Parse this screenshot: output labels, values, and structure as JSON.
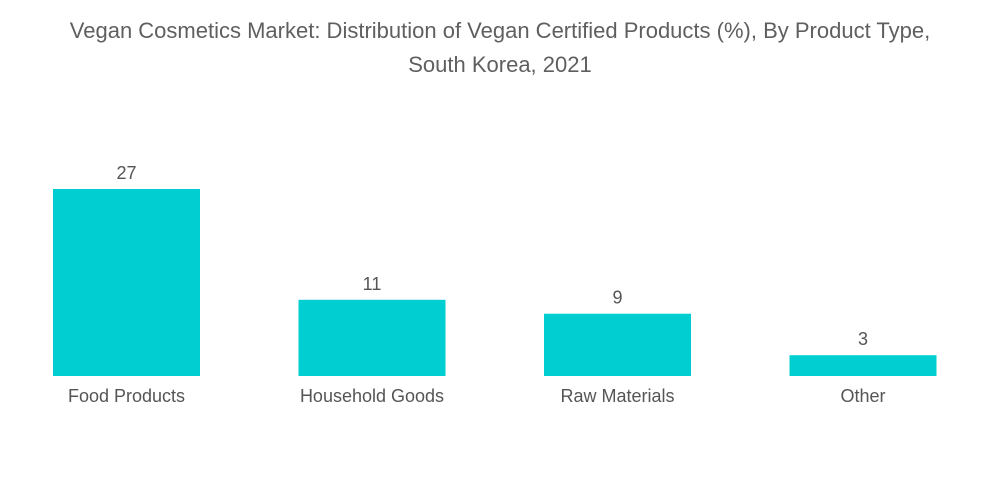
{
  "chart_data": {
    "type": "bar",
    "title_line1": "Vegan Cosmetics Market: Distribution of Vegan Certified Products (%), By Product Type,",
    "title_line2": "South Korea, 2021",
    "categories": [
      "Food Products",
      "Household Goods",
      "Raw Materials",
      "Other"
    ],
    "values": [
      27,
      11,
      9,
      3
    ],
    "data_labels": [
      "27",
      "11",
      "9",
      "3"
    ],
    "xlabel": "",
    "ylabel": "",
    "ylim": [
      0,
      27
    ],
    "grid": false,
    "bar_color": "#00CED1",
    "text_color": "#555555"
  }
}
